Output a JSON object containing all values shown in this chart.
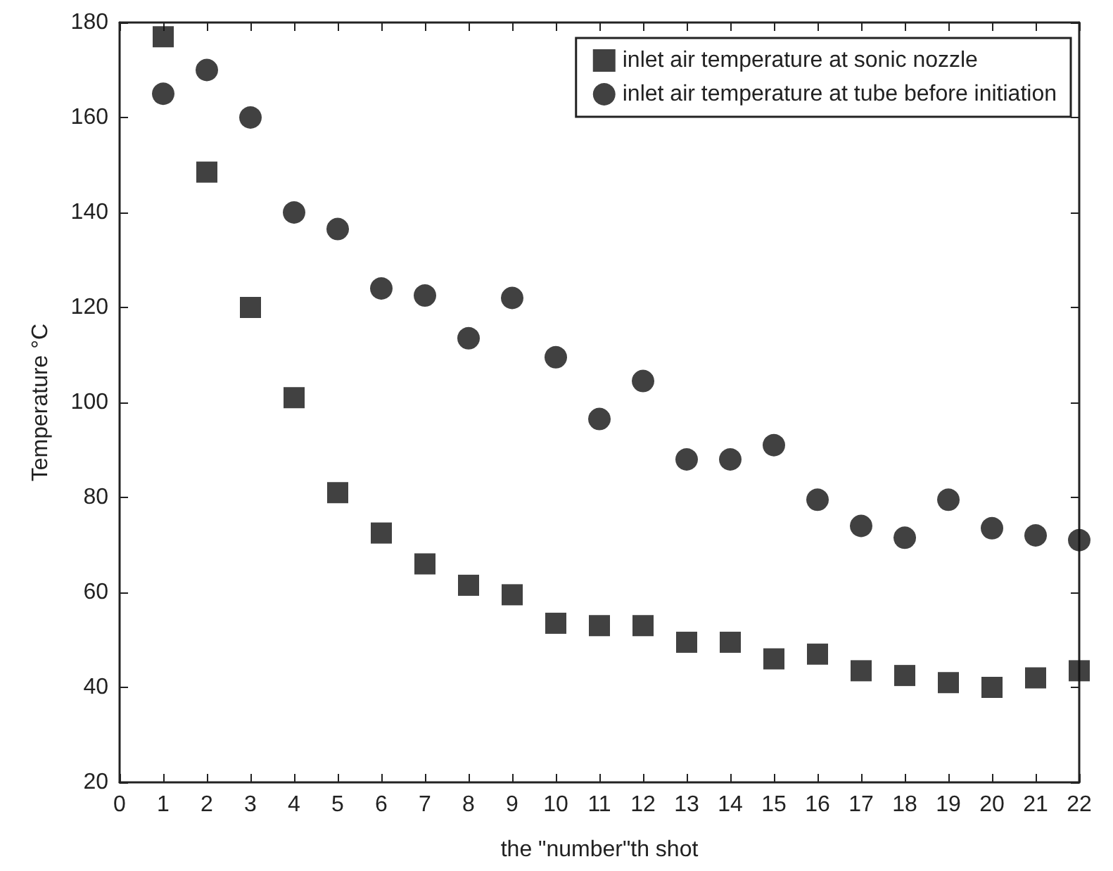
{
  "chart_data": {
    "type": "scatter",
    "xlabel": "the \"number\"th shot",
    "ylabel": "Temperature °C",
    "x": [
      1,
      2,
      3,
      4,
      5,
      6,
      7,
      8,
      9,
      10,
      11,
      12,
      13,
      14,
      15,
      16,
      17,
      18,
      19,
      20,
      21,
      22
    ],
    "series": [
      {
        "name": "inlet air temperature at sonic nozzle",
        "color": "#111111",
        "marker": "square",
        "values": [
          177,
          148.5,
          120,
          101,
          81,
          72.5,
          66,
          61.5,
          59.5,
          53.5,
          53,
          53,
          49.5,
          49.5,
          46,
          47,
          43.5,
          42.5,
          41,
          40,
          42,
          43.5
        ]
      },
      {
        "name": "inlet air temperature at tube before initiation",
        "color": "#111111",
        "marker": "circle",
        "values": [
          165,
          170,
          160,
          140,
          136.5,
          124,
          122.5,
          113.5,
          122,
          109.5,
          96.5,
          104.5,
          88,
          88,
          91,
          79.5,
          74,
          71.5,
          79.5,
          73.5,
          72,
          71
        ]
      }
    ],
    "xlim": [
      0,
      22
    ],
    "xticks": [
      0,
      1,
      2,
      3,
      4,
      5,
      6,
      7,
      8,
      9,
      10,
      11,
      12,
      13,
      14,
      15,
      16,
      17,
      18,
      19,
      20,
      21,
      22
    ],
    "ylim": [
      20,
      180
    ],
    "yticks": [
      20,
      40,
      60,
      80,
      100,
      120,
      140,
      160,
      180
    ],
    "grid": false,
    "legend": "top right"
  }
}
